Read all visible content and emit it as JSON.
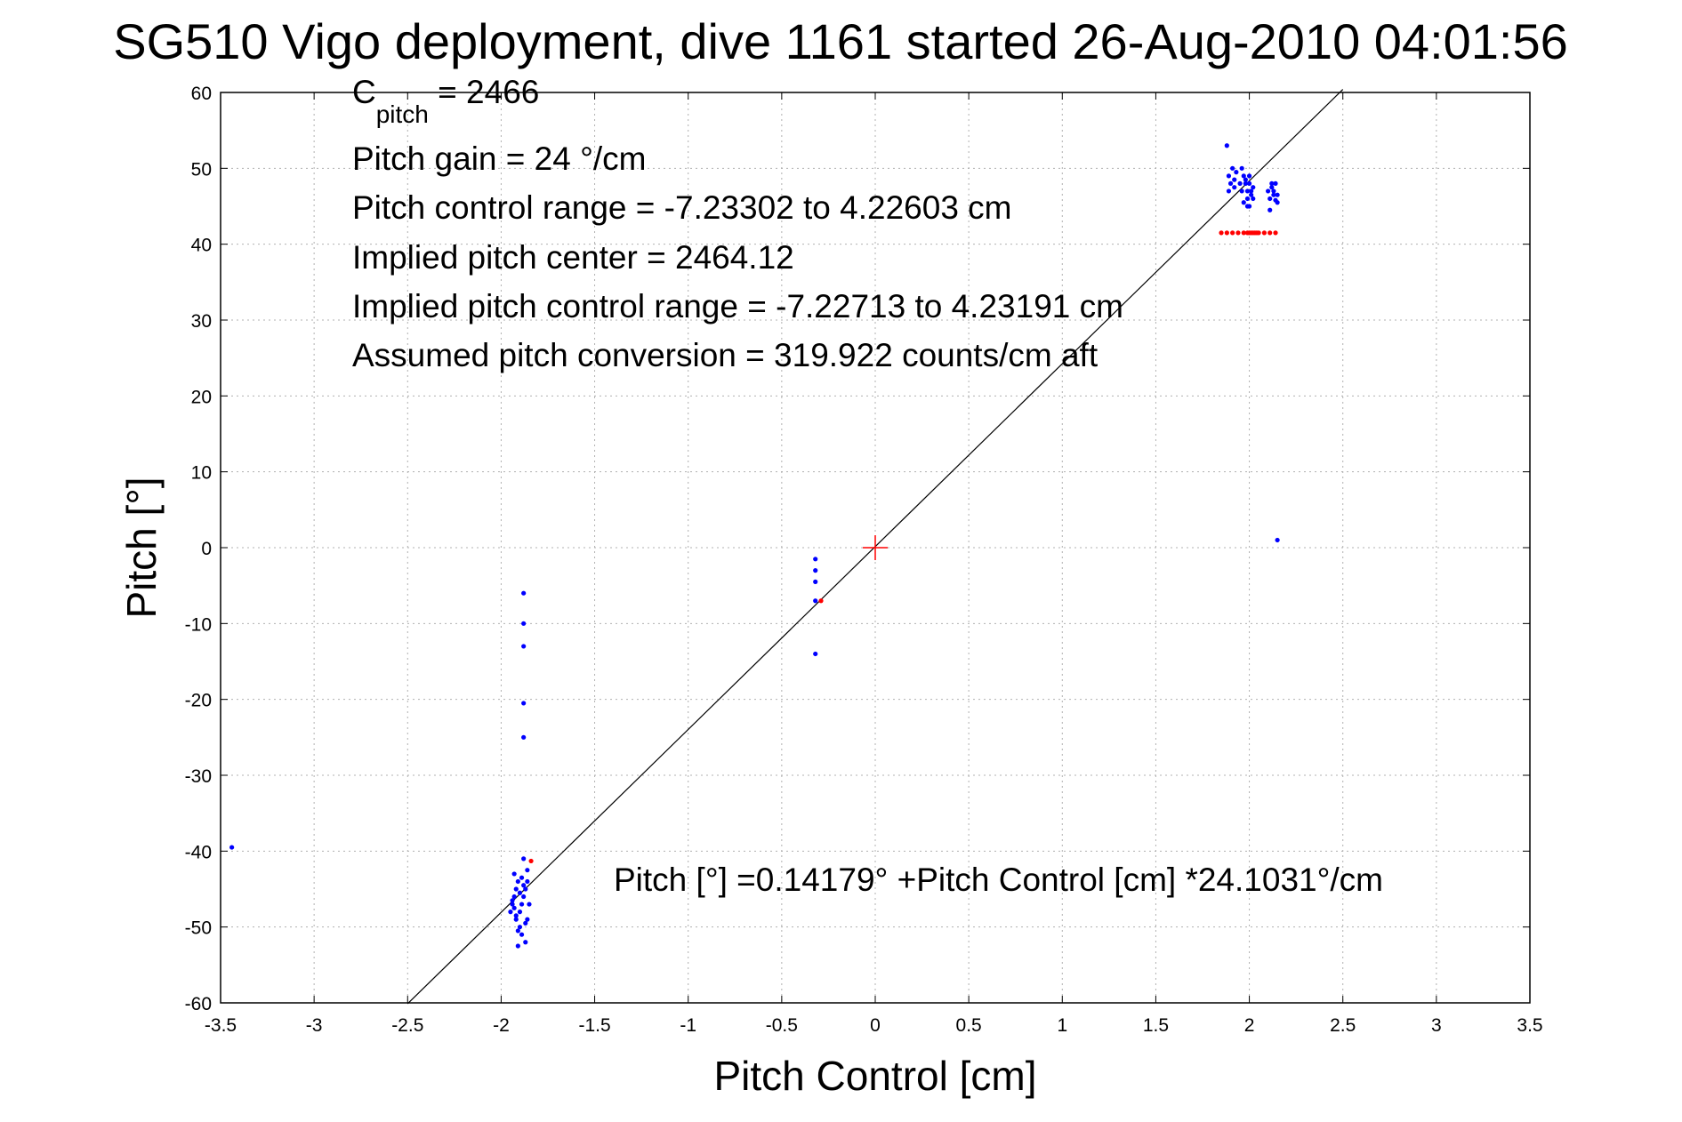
{
  "chart_data": {
    "type": "scatter",
    "title": "SG510 Vigo deployment, dive 1161 started 26-Aug-2010 04:01:56",
    "xlabel": "Pitch Control [cm]",
    "ylabel": "Pitch [°]",
    "xlim": [
      -3.5,
      3.5
    ],
    "ylim": [
      -60,
      60
    ],
    "xticks": [
      -3.5,
      -3,
      -2.5,
      -2,
      -1.5,
      -1,
      -0.5,
      0,
      0.5,
      1,
      1.5,
      2,
      2.5,
      3,
      3.5
    ],
    "xtick_labels": [
      "-3.5",
      "-3",
      "-2.5",
      "-2",
      "-1.5",
      "-1",
      "-0.5",
      "0",
      "0.5",
      "1",
      "1.5",
      "2",
      "2.5",
      "3",
      "3.5"
    ],
    "yticks": [
      -60,
      -50,
      -40,
      -30,
      -20,
      -10,
      0,
      10,
      20,
      30,
      40,
      50,
      60
    ],
    "ytick_labels": [
      "-60",
      "-50",
      "-40",
      "-30",
      "-20",
      "-10",
      "0",
      "10",
      "20",
      "30",
      "40",
      "50",
      "60"
    ],
    "grid": true,
    "colors": {
      "observed": "#0000ff",
      "fitted": "#ff0000",
      "fit_line": "#000000",
      "center_marker": "#ff0000"
    },
    "annotations": {
      "c_pitch": {
        "base": "C",
        "sub": "pitch",
        "rest": " = 2466"
      },
      "lines": [
        "Pitch gain = 24 °/cm",
        "Pitch control range = -7.23302 to 4.22603 cm",
        "Implied pitch center = 2464.12",
        "Implied pitch control range = -7.22713 to 4.23191 cm",
        "Assumed pitch conversion = 319.922 counts/cm aft"
      ],
      "fit_equation": "Pitch [°] =0.14179° +Pitch Control [cm] *24.1031°/cm"
    },
    "fit_line": {
      "intercept": 0.14179,
      "slope": 24.1031,
      "x_range": [
        -2.5,
        2.5
      ]
    },
    "center_marker": {
      "x": 0,
      "y": 0
    },
    "series": [
      {
        "kind": "observed",
        "x": [
          -3.44,
          -1.88,
          -1.88,
          -1.88,
          -1.88,
          -1.88,
          -1.88,
          -1.95,
          -1.94,
          -1.93,
          -1.92,
          -1.91,
          -1.9,
          -1.89,
          -1.88,
          -1.87,
          -1.86,
          -1.85,
          -1.92,
          -1.9,
          -1.89,
          -1.87,
          -1.93,
          -1.91,
          -1.86,
          -1.94,
          -1.9,
          -1.88,
          -1.92,
          -1.89,
          -1.86,
          -1.91,
          -1.93,
          -1.87,
          -0.32,
          -0.32,
          -0.32,
          -0.32,
          -0.32,
          1.88,
          1.89,
          1.9,
          1.91,
          1.92,
          1.93,
          1.95,
          1.96,
          1.97,
          1.98,
          1.99,
          2.0,
          2.01,
          2.02,
          1.97,
          1.99,
          2.0,
          2.01,
          1.96,
          1.98,
          2.0,
          2.02,
          1.92,
          1.89,
          1.99,
          2.1,
          2.11,
          2.12,
          2.13,
          2.14,
          2.15,
          2.11,
          2.13,
          2.15,
          2.12,
          2.14,
          2.15
        ],
        "y": [
          -39.5,
          -6,
          -10,
          -13,
          -20.5,
          -25,
          -41,
          -48,
          -47,
          -46,
          -45,
          -44,
          -48,
          -47,
          -46,
          -45,
          -44,
          -47,
          -49,
          -50,
          -51,
          -52,
          -43,
          -52.5,
          -49,
          -46.5,
          -45.5,
          -44.5,
          -48.5,
          -43.5,
          -42.5,
          -50.5,
          -47.5,
          -49.5,
          -1.5,
          -3,
          -4.5,
          -7,
          -14,
          53,
          49,
          48,
          50,
          47.5,
          49.5,
          48,
          47,
          49,
          48.5,
          47,
          48,
          46.5,
          47.5,
          45.5,
          46,
          49,
          47,
          50,
          48,
          45,
          46,
          48.5,
          47,
          45,
          47,
          46,
          47.5,
          46.5,
          48,
          45.5,
          44.5,
          47,
          46.5,
          48,
          45.8,
          1
        ]
      },
      {
        "kind": "fitted",
        "x": [
          1.85,
          1.88,
          1.91,
          1.94,
          1.97,
          1.99,
          2.0,
          2.01,
          2.02,
          2.03,
          2.04,
          2.05,
          2.08,
          2.11,
          2.14,
          -0.29,
          -1.84
        ],
        "y": [
          41.5,
          41.5,
          41.5,
          41.5,
          41.5,
          41.5,
          41.5,
          41.5,
          41.5,
          41.5,
          41.5,
          41.5,
          41.5,
          41.5,
          41.5,
          -7,
          -41.3
        ]
      }
    ]
  }
}
